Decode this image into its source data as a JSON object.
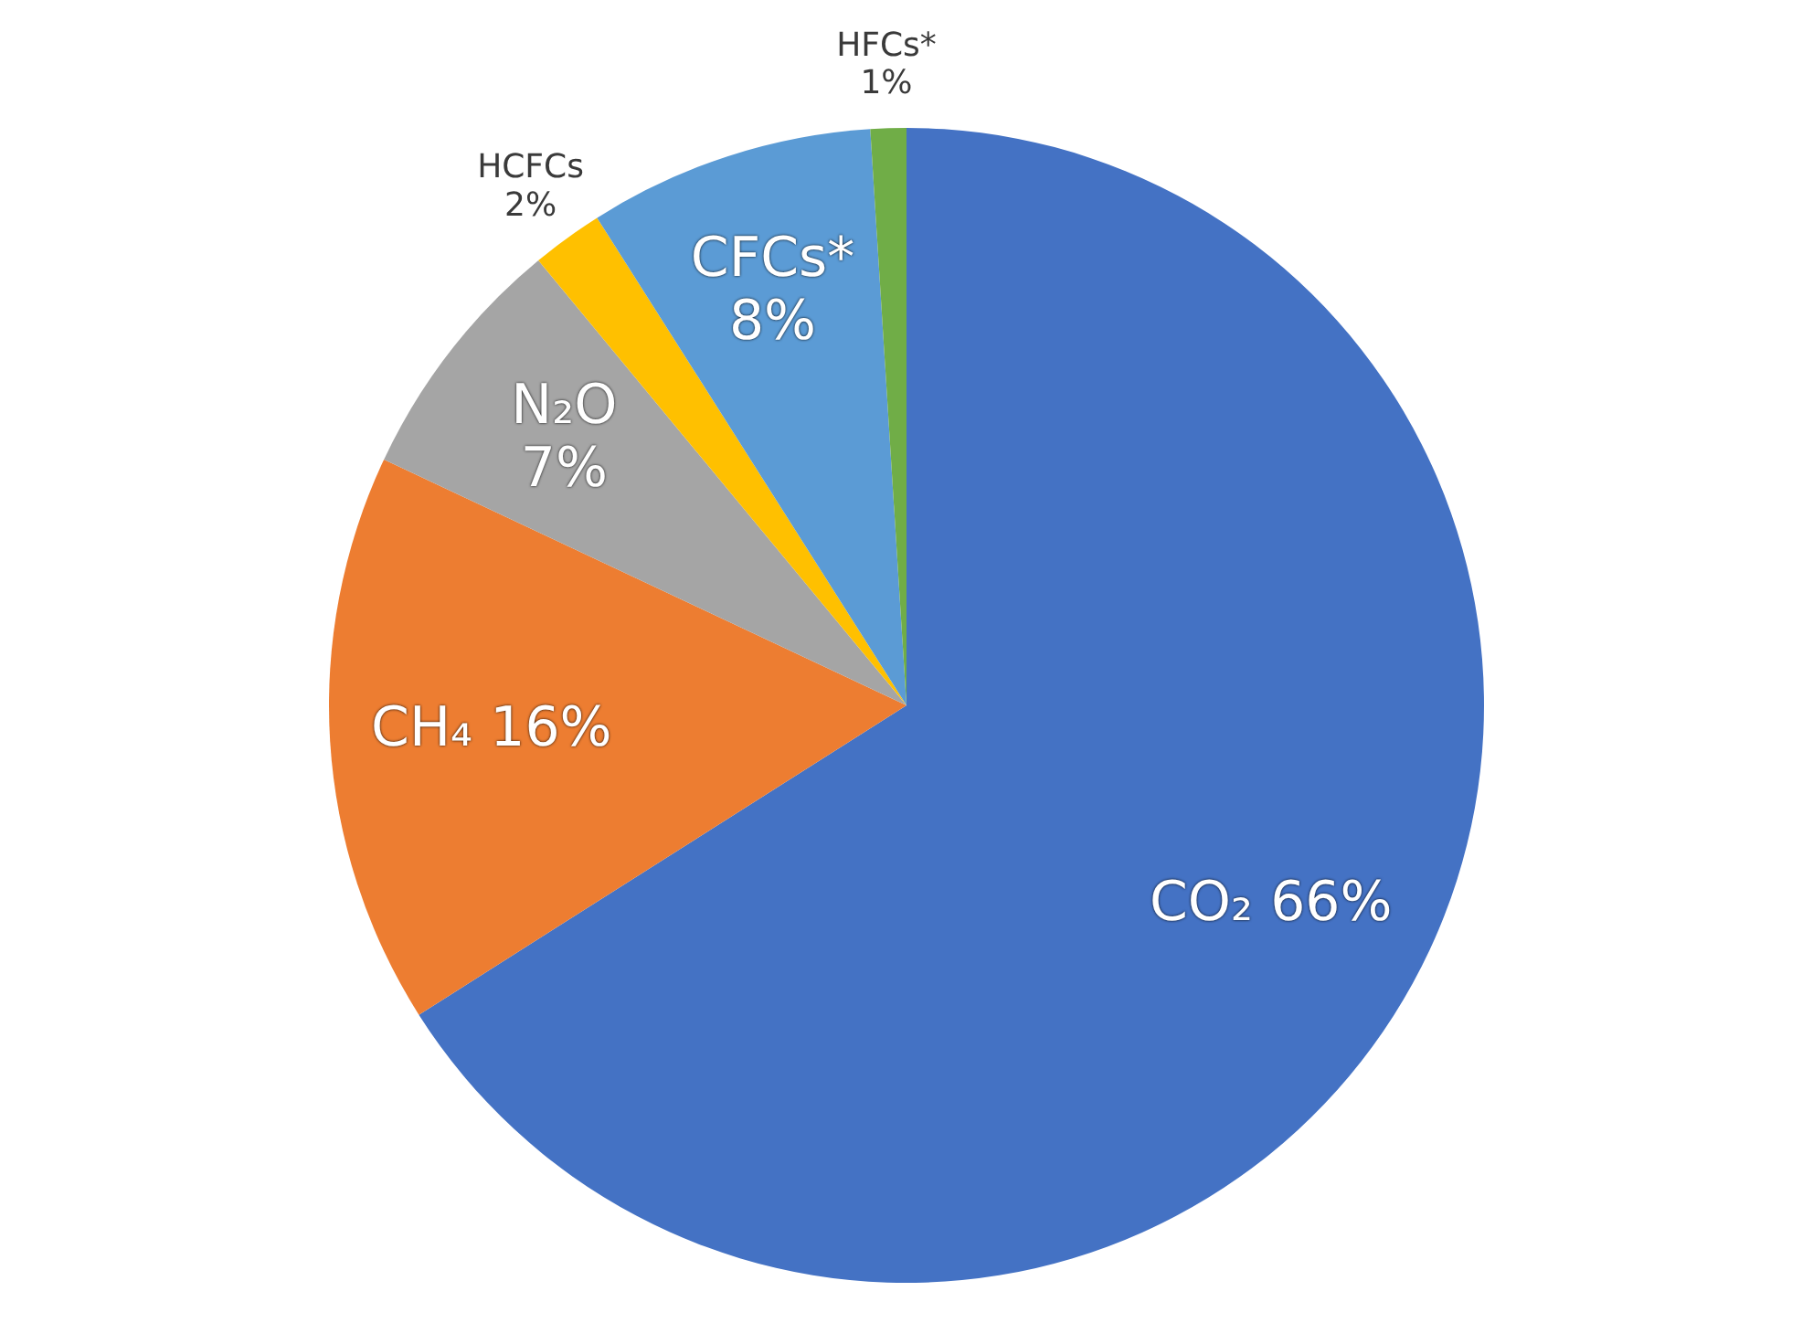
{
  "chart_data": {
    "type": "pie",
    "categories": [
      "CO₂",
      "CH₄",
      "N₂O",
      "HCFCs",
      "CFCs*",
      "HFCs*"
    ],
    "values": [
      66,
      16,
      7,
      2,
      8,
      1
    ],
    "value_labels": [
      "66%",
      "16%",
      "7%",
      "2%",
      "8%",
      "1%"
    ],
    "colors": [
      "#4472c4",
      "#ed7d31",
      "#a5a5a5",
      "#ffc000",
      "#5b9bd5",
      "#70ad47"
    ],
    "legend": false
  }
}
